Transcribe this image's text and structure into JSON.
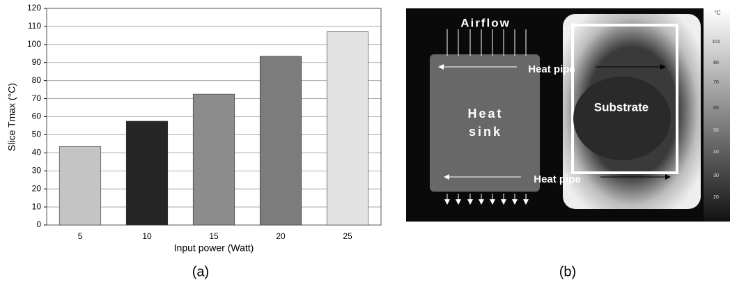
{
  "chart_data": {
    "type": "bar",
    "y_label": "Slice Tmax (°C)",
    "x_label": "Input power (Watt)",
    "categories": [
      "5",
      "10",
      "15",
      "20",
      "25"
    ],
    "values": [
      43.5,
      57.5,
      72.5,
      93.5,
      107
    ],
    "colors": [
      "#c4c4c4",
      "#262626",
      "#8c8c8c",
      "#7c7c7c",
      "#e2e2e2"
    ],
    "ylim": [
      0,
      120
    ],
    "yticks": [
      0,
      10,
      20,
      30,
      40,
      50,
      60,
      70,
      80,
      90,
      100,
      110,
      120
    ],
    "grid": true
  },
  "panel_labels": [
    "(a)",
    "(b)"
  ],
  "image": {
    "airflow": "Airflow",
    "heat_pipe_top": "Heat pipe",
    "heat_pipe_bottom": "Heat pipe",
    "heat_sink": [
      "Heat",
      "sink"
    ],
    "substrate": "Substrate",
    "colorbar_unit": "°C",
    "colorbar_labels": [
      "101",
      "80",
      "70",
      "60",
      "50",
      "40",
      "30",
      "20"
    ]
  }
}
